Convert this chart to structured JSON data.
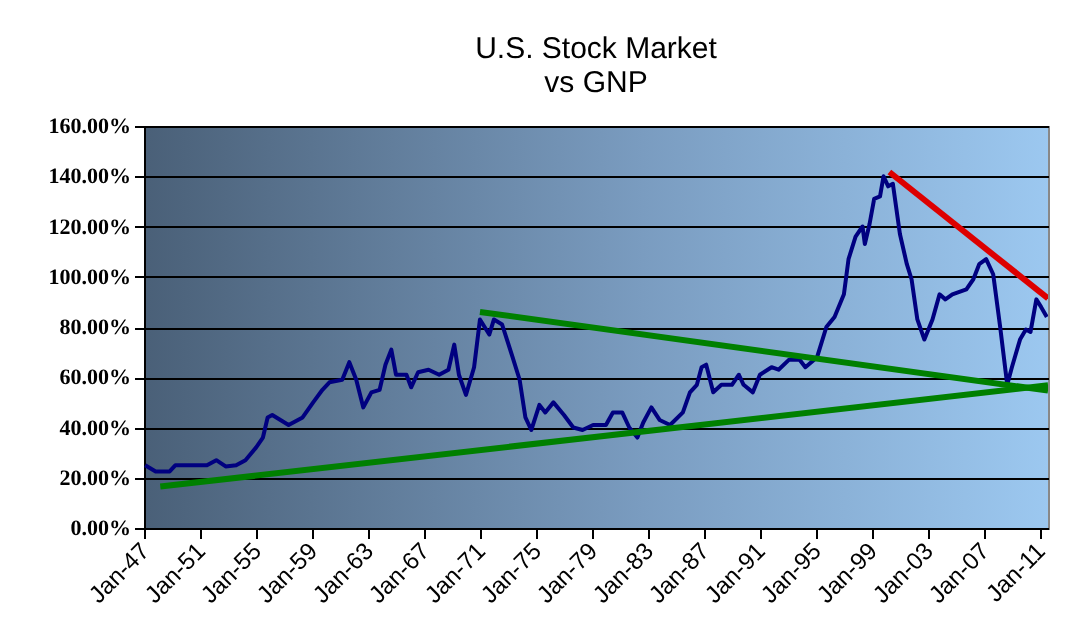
{
  "chart_data": {
    "type": "line",
    "title": "U.S. Stock Market",
    "subtitle": "vs GNP",
    "xlim": [
      "1947-01",
      "2011-08"
    ],
    "ylim": [
      0,
      160
    ],
    "xticks": [
      {
        "value": "1947-01",
        "label": "Jan-47"
      },
      {
        "value": "1951-01",
        "label": "Jan-51"
      },
      {
        "value": "1955-01",
        "label": "Jan-55"
      },
      {
        "value": "1959-01",
        "label": "Jan-59"
      },
      {
        "value": "1963-01",
        "label": "Jan-63"
      },
      {
        "value": "1967-01",
        "label": "Jan-67"
      },
      {
        "value": "1971-01",
        "label": "Jan-71"
      },
      {
        "value": "1975-01",
        "label": "Jan-75"
      },
      {
        "value": "1979-01",
        "label": "Jan-79"
      },
      {
        "value": "1983-01",
        "label": "Jan-83"
      },
      {
        "value": "1987-01",
        "label": "Jan-87"
      },
      {
        "value": "1991-01",
        "label": "Jan-91"
      },
      {
        "value": "1995-01",
        "label": "Jan-95"
      },
      {
        "value": "1999-01",
        "label": "Jan-99"
      },
      {
        "value": "2003-01",
        "label": "Jan-03"
      },
      {
        "value": "2007-01",
        "label": "Jan-07"
      },
      {
        "value": "2011-01",
        "label": "Jan-11"
      }
    ],
    "yticks": [
      {
        "value": 0,
        "label": "0.00%"
      },
      {
        "value": 20,
        "label": "20.00%"
      },
      {
        "value": 40,
        "label": "40.00%"
      },
      {
        "value": 60,
        "label": "60.00%"
      },
      {
        "value": 80,
        "label": "80.00%"
      },
      {
        "value": 100,
        "label": "100.00%"
      },
      {
        "value": 120,
        "label": "120.00%"
      },
      {
        "value": 140,
        "label": "140.00%"
      },
      {
        "value": 160,
        "label": "160.00%"
      }
    ],
    "grid": "y",
    "marker": "none",
    "line_style": "solid",
    "series": [
      {
        "color": "#000080",
        "x": [
          "1947-02",
          "1947-11",
          "1948-11",
          "1949-04",
          "1951-07",
          "1952-03",
          "1952-11",
          "1953-08",
          "1954-04",
          "1955-01",
          "1955-07",
          "1955-11",
          "1956-03",
          "1957-05",
          "1958-05",
          "1959-02",
          "1959-10",
          "1960-04",
          "1961-03",
          "1961-09",
          "1962-03",
          "1962-09",
          "1963-04",
          "1963-11",
          "1964-04",
          "1964-09",
          "1965-01",
          "1965-10",
          "1966-02",
          "1966-08",
          "1967-05",
          "1968-02",
          "1968-10",
          "1969-03",
          "1969-07",
          "1970-01",
          "1970-08",
          "1971-01",
          "1971-09",
          "1972-01",
          "1972-08",
          "1973-05",
          "1973-11",
          "1974-04",
          "1974-09",
          "1975-04",
          "1975-09",
          "1976-04",
          "1977-01",
          "1977-09",
          "1978-05",
          "1979-02",
          "1980-01",
          "1980-07",
          "1981-03",
          "1981-09",
          "1982-04",
          "1982-09",
          "1983-04",
          "1983-11",
          "1984-08",
          "1985-07",
          "1986-01",
          "1986-07",
          "1986-11",
          "1987-03",
          "1987-09",
          "1988-04",
          "1989-01",
          "1989-07",
          "1989-11",
          "1990-07",
          "1991-01",
          "1991-11",
          "1992-05",
          "1993-02",
          "1993-11",
          "1994-04",
          "1995-02",
          "1995-10",
          "1996-05",
          "1997-01",
          "1997-05",
          "1997-11",
          "1998-05",
          "1998-07",
          "1998-11",
          "1999-03",
          "1999-08",
          "1999-11",
          "2000-03",
          "2000-07",
          "2001-01",
          "2001-07",
          "2001-11",
          "2002-04",
          "2002-10",
          "2003-05",
          "2003-11",
          "2004-04",
          "2004-10",
          "2005-10",
          "2006-04",
          "2006-09",
          "2007-03",
          "2007-09",
          "2008-03",
          "2008-09",
          "2009-01",
          "2009-08",
          "2010-01",
          "2010-05",
          "2010-10",
          "2011-02",
          "2011-07"
        ],
        "values": [
          25,
          22.5,
          22.5,
          25,
          25,
          27,
          24.5,
          25,
          27,
          32,
          36,
          44,
          45,
          41,
          44,
          50,
          55,
          58,
          59,
          66,
          59,
          48,
          54,
          55,
          65,
          71,
          61,
          61,
          56,
          62,
          63,
          61,
          63,
          73,
          61,
          53,
          64,
          83,
          77,
          83,
          81,
          68,
          59,
          44,
          39,
          49,
          46,
          50,
          45,
          40,
          39,
          41,
          41,
          46,
          46,
          40,
          36,
          42,
          48,
          43,
          41,
          46,
          54,
          57,
          64,
          65,
          54,
          57,
          57,
          61,
          57,
          54,
          61,
          64,
          63,
          67,
          67,
          64,
          68,
          80,
          84,
          93,
          107,
          116,
          120,
          113,
          121,
          131,
          132,
          140,
          136,
          137,
          117,
          105,
          99,
          83,
          75,
          83,
          93,
          91,
          93,
          95,
          99,
          105,
          107,
          101,
          80,
          57,
          64,
          75,
          79,
          78,
          91,
          88,
          84
        ]
      },
      {
        "type": "line",
        "color": "#008000",
        "x": [
          "1948-03",
          "2011-08"
        ],
        "values": [
          16.5,
          56.8
        ]
      },
      {
        "type": "line",
        "color": "#008000",
        "x": [
          "1971-01",
          "2011-08"
        ],
        "values": [
          86,
          54.7
        ]
      },
      {
        "type": "line",
        "color": "#dd0000",
        "x": [
          "2000-04",
          "2011-08"
        ],
        "values": [
          141.7,
          91.4
        ]
      }
    ]
  }
}
